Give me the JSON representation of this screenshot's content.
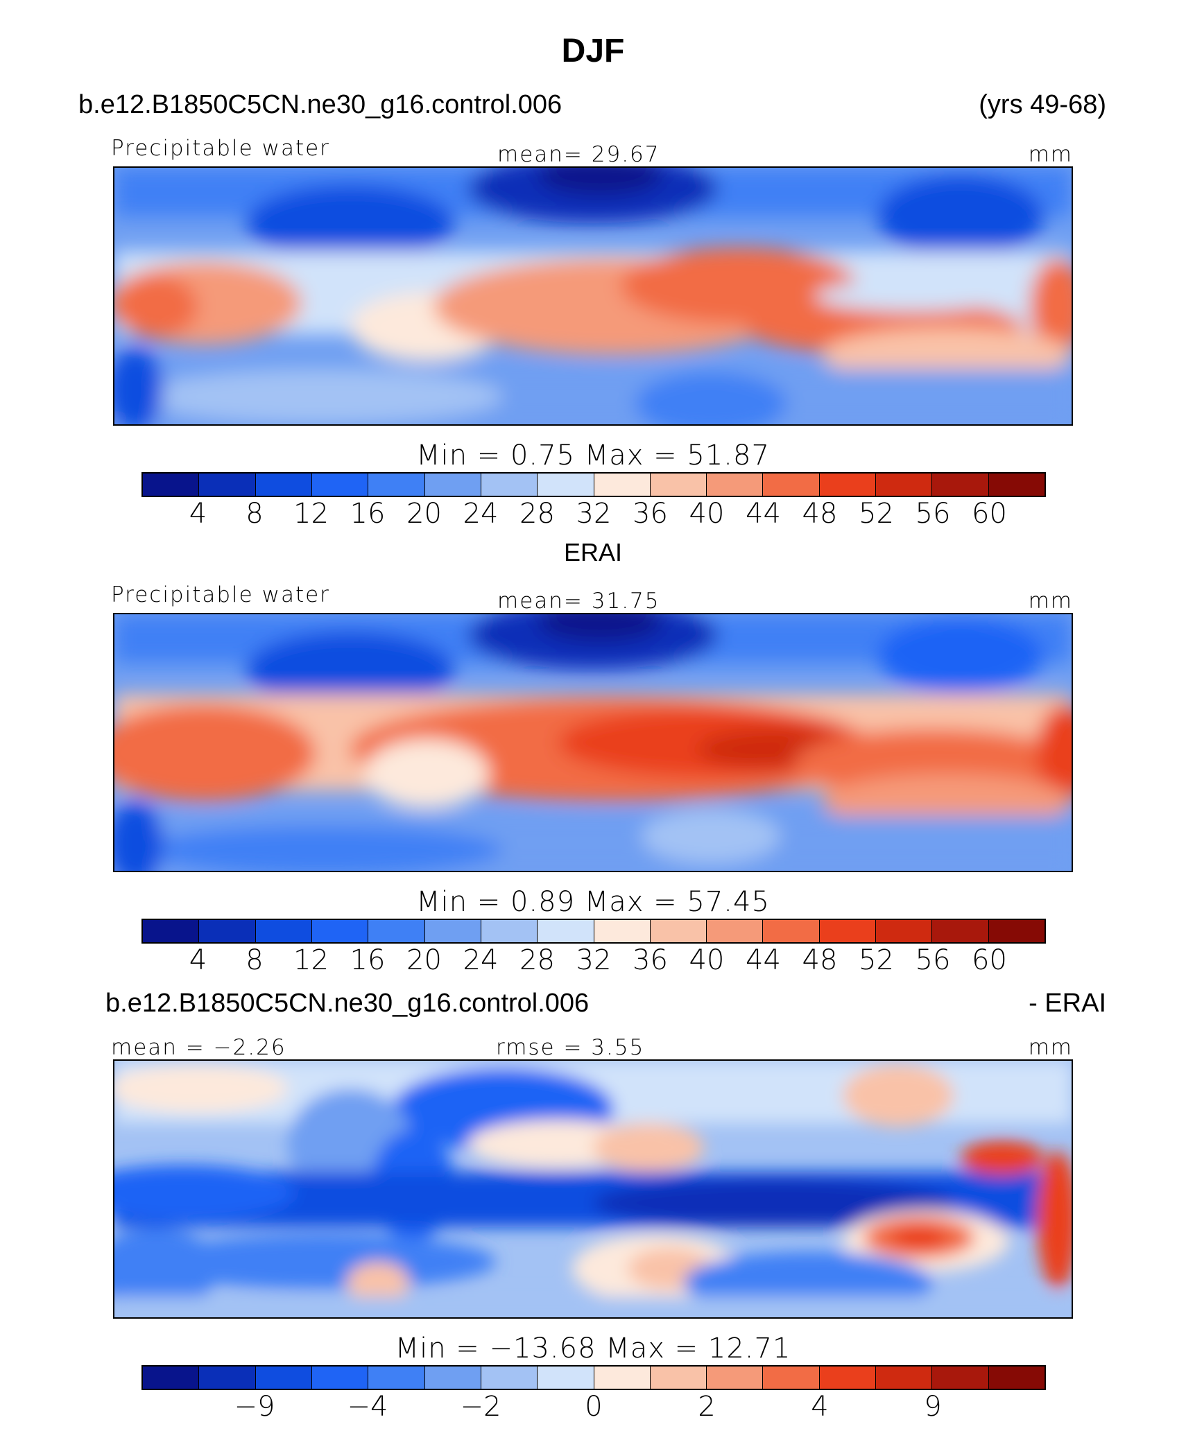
{
  "title": "DJF",
  "case_name": "b.e12.B1850C5CN.ne30_g16.control.006",
  "years": "(yrs 49-68)",
  "colors": [
    "#08148c",
    "#0a2fb8",
    "#0f4de0",
    "#1f64f5",
    "#3f80f5",
    "#6f9ff2",
    "#a3c2f4",
    "#d1e3fa",
    "#fde9dc",
    "#f9c2a8",
    "#f59a79",
    "#f26c45",
    "#ea3f1c",
    "#cf2a10",
    "#a8180c",
    "#860a05"
  ],
  "panels": [
    {
      "header": null,
      "label_left": "Precipitable water",
      "label_center": "mean=   29.67",
      "units": "mm",
      "minmax": "Min  =     0.75  Max  =    51.87",
      "ticks": [
        "4",
        "8",
        "12",
        "16",
        "20",
        "24",
        "28",
        "32",
        "36",
        "40",
        "44",
        "48",
        "52",
        "56",
        "60"
      ]
    },
    {
      "header": "ERAI",
      "label_left": "Precipitable water",
      "label_center": "mean=   31.75",
      "units": "mm",
      "minmax": "Min  =     0.89  Max  =    57.45",
      "ticks": [
        "4",
        "8",
        "12",
        "16",
        "20",
        "24",
        "28",
        "32",
        "36",
        "40",
        "44",
        "48",
        "52",
        "56",
        "60"
      ]
    },
    {
      "header_left": "b.e12.B1850C5CN.ne30_g16.control.006",
      "header_right": "- ERAI",
      "label_left": "mean =   −2.26",
      "label_center": "rmse  =      3.55",
      "units": "mm",
      "minmax": "Min  =  −13.68  Max  =    12.71",
      "ticks": [
        "−9",
        "−4",
        "−2",
        "0",
        "2",
        "4",
        "9"
      ]
    }
  ]
}
